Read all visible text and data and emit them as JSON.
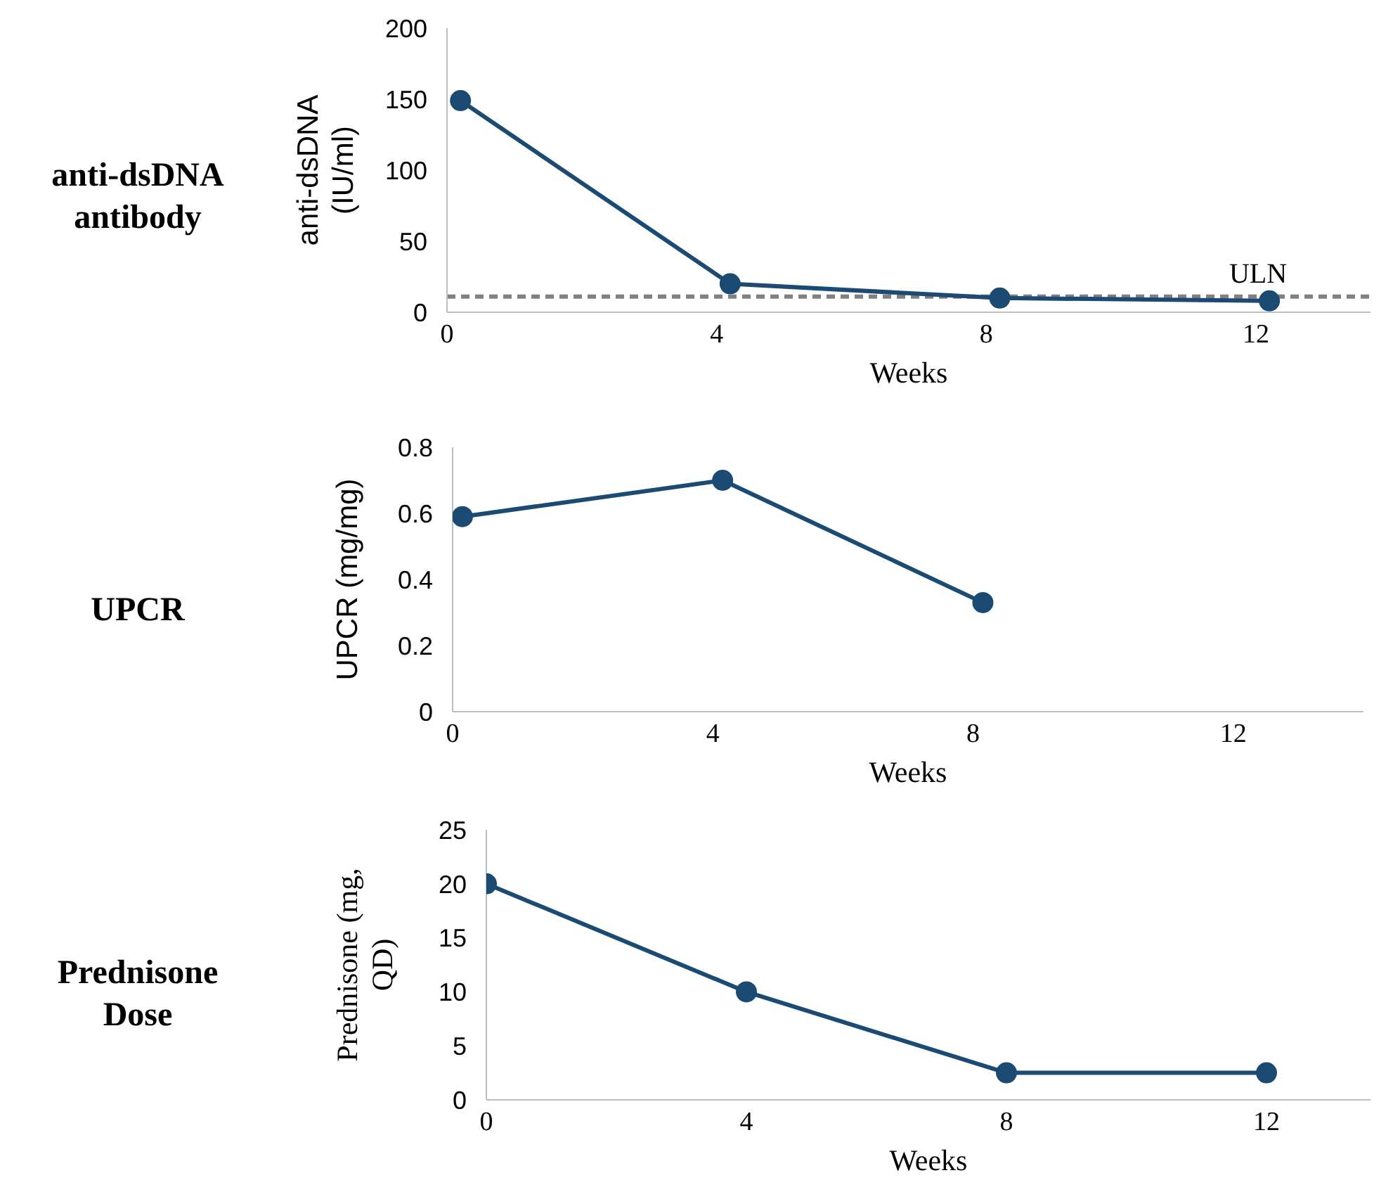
{
  "chart_data": [
    {
      "type": "line",
      "annotations": [
        "anti-dsDNA antibody"
      ],
      "xlabel": "Weeks",
      "ylabel": "anti-dsDNA (IU/ml)",
      "xlim": [
        0,
        13.7
      ],
      "xticks": [
        0,
        4,
        8,
        12
      ],
      "ylim": [
        0,
        200
      ],
      "yticks": [
        0,
        50,
        100,
        150,
        200
      ],
      "grid": false,
      "legend": false,
      "marker": "circle",
      "line_style": "solid",
      "series": [
        {
          "color": "#1b4a73",
          "x": [
            0.2,
            4.2,
            8.2,
            12.2
          ],
          "values": [
            149,
            20,
            10,
            8
          ]
        }
      ],
      "ref_lines": [
        {
          "axis": "y",
          "value": 11,
          "label": "ULN",
          "color": "#808080",
          "line_style": "dashed"
        }
      ]
    },
    {
      "type": "line",
      "annotations": [
        "UPCR"
      ],
      "xlabel": "Weeks",
      "ylabel": "UPCR (mg/mg)",
      "xlim": [
        0,
        14
      ],
      "xticks": [
        0,
        4,
        8,
        12
      ],
      "ylim": [
        0,
        0.8
      ],
      "yticks": [
        0,
        0.2,
        0.4,
        0.6,
        0.8
      ],
      "grid": false,
      "legend": false,
      "marker": "circle",
      "line_style": "solid",
      "series": [
        {
          "color": "#1b4a73",
          "x": [
            0.15,
            4.15,
            8.15
          ],
          "values": [
            0.59,
            0.7,
            0.33
          ]
        }
      ]
    },
    {
      "type": "line",
      "annotations": [
        "Prednisone Dose"
      ],
      "xlabel": "Weeks",
      "ylabel": "Prednisone (mg, QD)",
      "xlim": [
        0,
        13.6
      ],
      "xticks": [
        0,
        4,
        8,
        12
      ],
      "ylim": [
        0,
        25
      ],
      "yticks": [
        0,
        5,
        10,
        15,
        20,
        25
      ],
      "grid": false,
      "legend": false,
      "marker": "circle",
      "line_style": "solid",
      "series": [
        {
          "color": "#1b4a73",
          "x": [
            0,
            4,
            8,
            12
          ],
          "values": [
            20,
            10,
            2.5,
            2.5
          ]
        }
      ]
    }
  ]
}
